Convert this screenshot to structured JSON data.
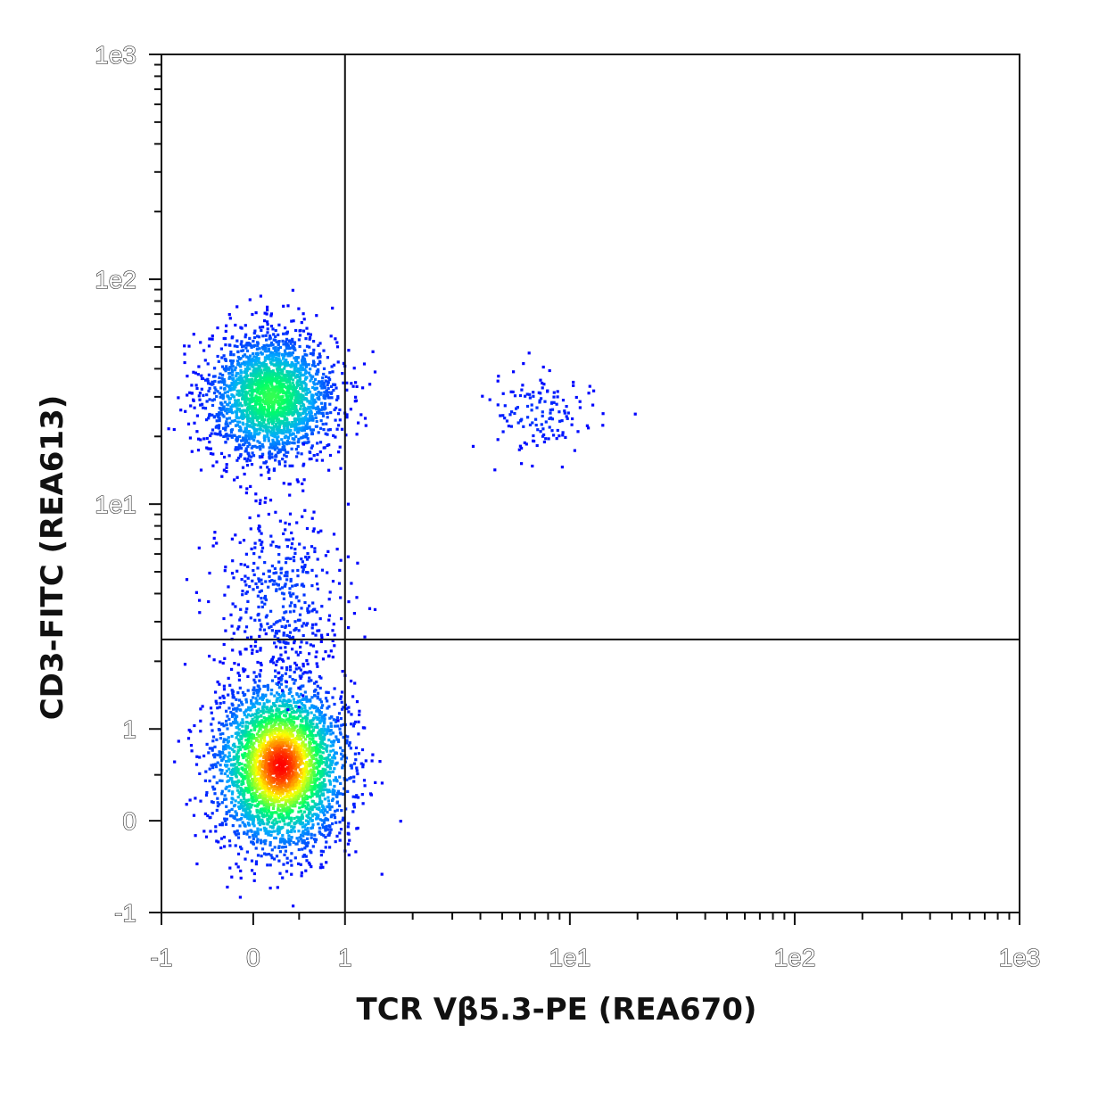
{
  "chart_data": {
    "type": "scatter",
    "xlabel": "TCR Vβ5.3-PE (REA670)",
    "ylabel": "CD3-FITC (REA613)",
    "x_scale": "biexponential",
    "y_scale": "biexponential",
    "xlim": [
      -1,
      1000
    ],
    "ylim": [
      -1,
      1000
    ],
    "x_ticks": [
      {
        "value": -1,
        "label": "-1"
      },
      {
        "value": 0,
        "label": "0"
      },
      {
        "value": 1,
        "label": "1"
      },
      {
        "value": 10,
        "label": "1e1"
      },
      {
        "value": 100,
        "label": "1e2"
      },
      {
        "value": 1000,
        "label": "1e3"
      }
    ],
    "y_ticks": [
      {
        "value": -1,
        "label": "-1"
      },
      {
        "value": 0,
        "label": "0"
      },
      {
        "value": 1,
        "label": "1"
      },
      {
        "value": 10,
        "label": "1e1"
      },
      {
        "value": 100,
        "label": "1e2"
      },
      {
        "value": 1000,
        "label": "1e3"
      }
    ],
    "quadrant_gate": {
      "x": 1,
      "y": 2.5
    },
    "colormap": [
      "#0000ff",
      "#00aaff",
      "#00ff66",
      "#ffff00",
      "#ff0000"
    ],
    "populations": [
      {
        "description": "CD3+ TCR Vβ5.3- cluster",
        "x_center": 0.2,
        "y_center": 30,
        "x_spread": 0.35,
        "y_spread": 0.35,
        "relative_size": 0.34,
        "peak_density": 0.55
      },
      {
        "description": "CD3- TCR Vβ5.3- cluster",
        "x_center": 0.3,
        "y_center": 0.6,
        "x_spread": 0.35,
        "y_spread": 0.45,
        "relative_size": 0.5,
        "peak_density": 1.0
      },
      {
        "description": "bridge between clusters",
        "x_center": 0.3,
        "y_center": 4,
        "x_spread": 0.35,
        "y_spread": 0.5,
        "relative_size": 0.06,
        "peak_density": 0.1
      },
      {
        "description": "CD3+ TCR Vβ5.3+ cluster",
        "x_center": 7,
        "y_center": 25,
        "x_spread": 0.3,
        "y_spread": 0.22,
        "relative_size": 0.02,
        "peak_density": 0.08
      }
    ]
  }
}
